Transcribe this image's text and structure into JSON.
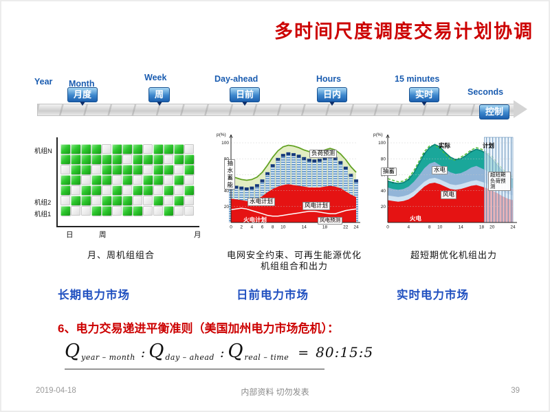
{
  "slide": {
    "title": "多时间尺度调度交易计划协调",
    "footer": {
      "date": "2019-04-18",
      "center": "内部资料 切勿发表",
      "page": "39"
    }
  },
  "timeline": {
    "items": [
      {
        "en": "Year",
        "cn": ""
      },
      {
        "en": "Month",
        "cn": "月度"
      },
      {
        "en": "Week",
        "cn": "周"
      },
      {
        "en": "Day-ahead",
        "cn": "日前"
      },
      {
        "en": "Hours",
        "cn": "日内"
      },
      {
        "en": "15 minutes",
        "cn": "实时"
      },
      {
        "en": "Seconds",
        "cn": "控制"
      }
    ]
  },
  "markets": {
    "long_term": "长期电力市场",
    "day_ahead": "日前电力市场",
    "real_time": "实时电力市场"
  },
  "principle": {
    "heading": "6、电力交易递进平衡准则（美国加州电力市场危机）：",
    "formula": {
      "q": "Q",
      "q1_sub": "year – month",
      "colon": ":",
      "q2_sub": "day – ahead",
      "q3_sub": "real – time",
      "equals": "=",
      "ratio": "80:15:5"
    }
  },
  "chart_data": [
    {
      "type": "heatmap",
      "title": "月、周机组组合",
      "ylabels": [
        "机组N",
        "机组2",
        "机组1"
      ],
      "xlabels": [
        "日",
        "周",
        "月"
      ],
      "cell_on_color": "#2dc62d",
      "cell_off_color": "#f5f5f5",
      "matrix": [
        [
          1,
          1,
          1,
          1,
          0,
          1,
          1,
          1,
          0,
          1,
          1,
          1,
          0
        ],
        [
          1,
          1,
          1,
          1,
          1,
          1,
          0,
          1,
          1,
          1,
          0,
          1,
          1
        ],
        [
          0,
          1,
          1,
          0,
          1,
          1,
          1,
          1,
          0,
          1,
          1,
          0,
          1
        ],
        [
          1,
          1,
          0,
          1,
          1,
          0,
          1,
          0,
          1,
          1,
          0,
          1,
          0
        ],
        [
          1,
          0,
          1,
          1,
          0,
          1,
          0,
          1,
          1,
          0,
          1,
          0,
          1
        ],
        [
          0,
          1,
          1,
          0,
          1,
          1,
          1,
          0,
          0,
          1,
          0,
          1,
          0
        ],
        [
          1,
          0,
          0,
          1,
          1,
          0,
          1,
          1,
          0,
          0,
          1,
          0,
          0
        ]
      ]
    },
    {
      "type": "area",
      "title": "电网安全约束、可再生能源优化机组组合和出力",
      "ylabel": "p(%)",
      "yticks": [
        20,
        40,
        60,
        80,
        100
      ],
      "xticks": [
        0,
        2,
        4,
        6,
        8,
        10,
        14,
        18,
        22,
        24
      ],
      "x_range": [
        0,
        24
      ],
      "annotations": [
        "负荷预测",
        "抽水蓄能",
        "水电计划",
        "风电计划",
        "火电计划",
        "风电预测"
      ],
      "series": [
        {
          "key": "load",
          "name": "负荷预测",
          "color": "#63a223",
          "values": [
            58,
            56,
            54,
            53,
            54,
            57,
            63,
            72,
            82,
            90,
            95,
            97,
            96,
            94,
            91,
            89,
            88,
            89,
            91,
            93,
            91,
            86,
            79,
            70,
            63
          ]
        },
        {
          "key": "hydro_top",
          "name": "水电计划+抽水蓄能",
          "color": "#4e8bc2",
          "values": [
            48,
            46,
            45,
            44,
            45,
            48,
            54,
            63,
            73,
            81,
            86,
            88,
            87,
            85,
            82,
            80,
            79,
            80,
            82,
            84,
            82,
            77,
            70,
            61,
            54
          ]
        },
        {
          "key": "thermal",
          "name": "火电计划",
          "color": "#e51313",
          "values": [
            30,
            29,
            28,
            27,
            27,
            29,
            33,
            38,
            42,
            45,
            47,
            48,
            47,
            46,
            45,
            44,
            44,
            44,
            45,
            46,
            45,
            43,
            39,
            35,
            32
          ]
        },
        {
          "key": "wind_fc",
          "name": "风电预测",
          "color": "#ffffff",
          "values": [
            16,
            17,
            18,
            17,
            15,
            13,
            11,
            9,
            8,
            8,
            9,
            10,
            11,
            12,
            13,
            14,
            14,
            13,
            12,
            11,
            11,
            13,
            15,
            16,
            17
          ]
        }
      ]
    },
    {
      "type": "area",
      "title": "超短期优化机组出力",
      "ylabel": "p(%)",
      "yticks": [
        20,
        40,
        60,
        80,
        100
      ],
      "xticks": [
        0,
        4,
        8,
        10,
        14,
        18,
        20,
        24
      ],
      "x_range": [
        0,
        24
      ],
      "annotations": [
        "实际",
        "计划",
        "抽蓄",
        "水电",
        "风电",
        "火电",
        "超短期负荷预测"
      ],
      "forecast_band_x": [
        18.5,
        24
      ],
      "series": [
        {
          "key": "actual",
          "name": "实际",
          "color": "#0c8478",
          "values": [
            52,
            50,
            49,
            50,
            54,
            62,
            74,
            86,
            94,
            98,
            95,
            88,
            82,
            79,
            80,
            84,
            89,
            92,
            90,
            86,
            80,
            72,
            64,
            58,
            54
          ]
        },
        {
          "key": "plan",
          "name": "计划",
          "color": "#52c138",
          "values": [
            55,
            53,
            51,
            52,
            56,
            65,
            77,
            89,
            96,
            97,
            93,
            86,
            80,
            78,
            82,
            86,
            91,
            94,
            92,
            88,
            83,
            75,
            67,
            61,
            57
          ]
        },
        {
          "key": "hydro_top",
          "name": "水电",
          "color": "#92b5d8",
          "values": [
            44,
            42,
            41,
            42,
            45,
            51,
            59,
            68,
            74,
            76,
            72,
            67,
            63,
            61,
            62,
            65,
            69,
            71,
            68,
            65,
            60,
            55,
            49,
            45,
            43
          ]
        },
        {
          "key": "wind_top",
          "name": "风电",
          "color": "#cfe2f2",
          "values": [
            34,
            33,
            32,
            33,
            35,
            39,
            45,
            51,
            55,
            56,
            54,
            51,
            48,
            47,
            48,
            50,
            52,
            53,
            51,
            49,
            46,
            43,
            39,
            36,
            34
          ]
        },
        {
          "key": "thermal",
          "name": "火电",
          "color": "#e51313",
          "values": [
            28,
            27,
            26,
            27,
            29,
            33,
            39,
            45,
            49,
            50,
            48,
            45,
            42,
            41,
            42,
            44,
            46,
            47,
            45,
            43,
            40,
            37,
            33,
            30,
            28
          ]
        }
      ]
    }
  ]
}
